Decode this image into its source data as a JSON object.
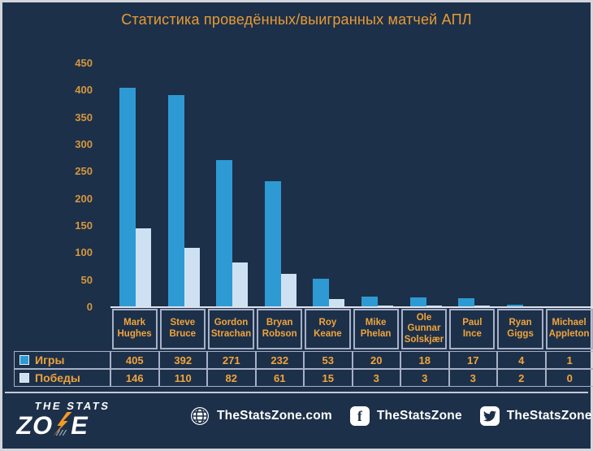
{
  "title": "Статистика проведённых/выигранных матчей АПЛ",
  "chart_data": {
    "type": "bar",
    "title": "Статистика проведённых/выигранных матчей АПЛ",
    "categories": [
      "Mark Hughes",
      "Steve Bruce",
      "Gordon Strachan",
      "Bryan Robson",
      "Roy Keane",
      "Mike Phelan",
      "Ole Gunnar Solskjær",
      "Paul Ince",
      "Ryan Giggs",
      "Michael Appleton"
    ],
    "series": [
      {
        "name": "Игры",
        "color": "#2d9ad4",
        "values": [
          405,
          392,
          271,
          232,
          53,
          20,
          18,
          17,
          4,
          1
        ]
      },
      {
        "name": "Победы",
        "color": "#cde1f2",
        "values": [
          146,
          110,
          82,
          61,
          15,
          3,
          3,
          3,
          2,
          0
        ]
      }
    ],
    "xlabel": "",
    "ylabel": "",
    "ylim": [
      0,
      450
    ],
    "ytick_step": 50,
    "grid": false,
    "legend_position": "data-table-left"
  },
  "footer": {
    "logo": {
      "line1": "THE STATS",
      "line2_left": "ZO",
      "line2_right": "E"
    },
    "links": [
      {
        "icon": "globe-icon",
        "label": "TheStatsZone.com"
      },
      {
        "icon": "facebook-icon",
        "label": "TheStatsZone"
      },
      {
        "icon": "twitter-icon",
        "label": "TheStatsZone"
      }
    ]
  },
  "colors": {
    "background": "#1d3049",
    "accent_orange": "#eda23c",
    "games_bar": "#2d9ad4",
    "wins_bar": "#cde1f2",
    "table_border": "#a6b0c6"
  }
}
